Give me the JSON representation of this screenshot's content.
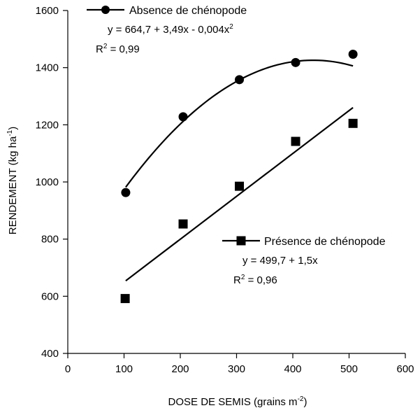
{
  "chart_data": {
    "type": "scatter",
    "xlabel": "DOSE DE SEMIS (grains m",
    "xlabel_sup": "-2",
    "xlabel_end": ")",
    "ylabel": "RENDEMENT (kg ha",
    "ylabel_sup": "-1",
    "ylabel_end": ")",
    "xlim": [
      0,
      600
    ],
    "ylim": [
      400,
      1600
    ],
    "x_ticks": [
      "0",
      "100",
      "200",
      "300",
      "400",
      "500",
      "600"
    ],
    "y_ticks": [
      "400",
      "600",
      "800",
      "1000",
      "1200",
      "1400",
      "1600"
    ],
    "grid": false,
    "series": [
      {
        "name": "Absence de chénopode",
        "marker": "circle",
        "x": [
          103,
          205,
          305,
          405,
          507
        ],
        "y": [
          963,
          1228,
          1358,
          1418,
          1447
        ],
        "equation": "y = 664,7 + 3,49x - 0,004x",
        "equation_sup": "2",
        "r2_label": "R",
        "r2_sup": "2",
        "r2_value": " = 0,99",
        "fit": {
          "kind": "quadratic",
          "coefficients": [
            664.7,
            3.49,
            -0.004
          ],
          "x_range": [
            103,
            507
          ]
        }
      },
      {
        "name": "Présence de chénopode",
        "marker": "square",
        "x": [
          102,
          205,
          305,
          405,
          507
        ],
        "y": [
          592,
          853,
          985,
          1142,
          1205
        ],
        "equation": "y = 499,7 + 1,5x",
        "r2_label": "R",
        "r2_sup": "2",
        "r2_value": " = 0,96",
        "fit": {
          "kind": "linear",
          "coefficients": [
            499.7,
            1.5
          ],
          "x_range": [
            103,
            507
          ]
        }
      }
    ]
  }
}
